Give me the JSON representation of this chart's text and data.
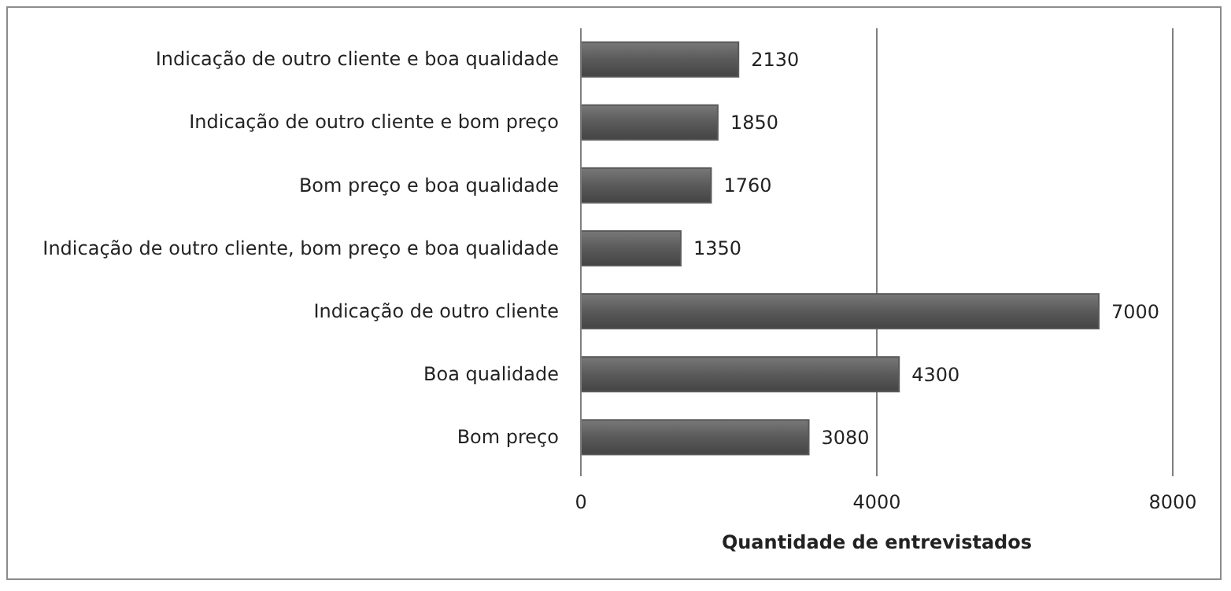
{
  "chart_data": {
    "type": "bar",
    "orientation": "horizontal",
    "xlabel": "Quantidade de entrevistados",
    "categories": [
      "Indicação de outro cliente e boa qualidade",
      "Indicação de outro cliente e bom preço",
      "Bom preço e boa qualidade",
      "Indicação de outro cliente, bom preço e boa qualidade",
      "Indicação de outro cliente",
      "Boa qualidade",
      "Bom preço"
    ],
    "values": [
      2130,
      1850,
      1760,
      1350,
      7000,
      4300,
      3080
    ],
    "color": "#5a5a5a",
    "xlim": [
      0,
      8000
    ],
    "xticks": [
      0,
      4000,
      8000
    ],
    "grid": "x",
    "data_labels": true
  }
}
